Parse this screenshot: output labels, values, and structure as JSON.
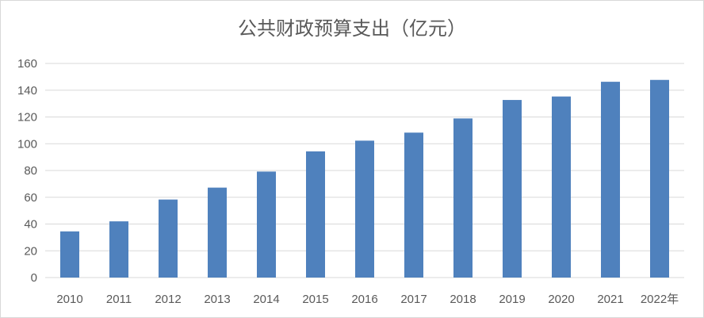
{
  "chart_data": {
    "type": "bar",
    "title": "公共财政预算支出（亿元）",
    "categories": [
      "2010",
      "2011",
      "2012",
      "2013",
      "2014",
      "2015",
      "2016",
      "2017",
      "2018",
      "2019",
      "2020",
      "2021",
      "2022年"
    ],
    "series": [
      {
        "values": [
          34.5,
          42,
          58.3,
          67.2,
          79.2,
          94.3,
          102.3,
          108.3,
          118.9,
          132.7,
          135.3,
          146.3,
          147.7
        ],
        "color": "#4f81bd"
      }
    ],
    "yticks": [
      "0",
      "20",
      "40",
      "60",
      "80",
      "100",
      "120",
      "140",
      "160"
    ],
    "ylim": [
      0,
      160
    ],
    "grid": true,
    "legend": "none"
  }
}
